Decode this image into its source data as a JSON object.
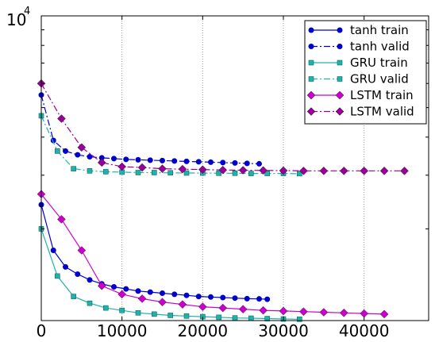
{
  "chart_data": {
    "type": "line",
    "title": "",
    "xlabel": "",
    "ylabel": "",
    "xlim": [
      0,
      48000
    ],
    "x_ticks": [
      0,
      10000,
      20000,
      30000,
      40000
    ],
    "x_tick_labels": [
      "0",
      "10000",
      "20000",
      "30000",
      "40000"
    ],
    "y_scale": "log",
    "ylim": [
      1000,
      10000
    ],
    "y_tick_label": {
      "base": "10",
      "exponent": "4"
    },
    "grid": "x-only, dotted",
    "legend_position": "top-right",
    "series": [
      {
        "name": "tanh train",
        "color": "#0000cc",
        "line": "solid",
        "marker": "circle",
        "x": [
          0,
          1500,
          3000,
          4500,
          6000,
          7500,
          9000,
          10500,
          12000,
          13500,
          15000,
          16500,
          18000,
          19500,
          21000,
          22500,
          24000,
          25500,
          27000,
          28000
        ],
        "y": [
          2400,
          1700,
          1500,
          1420,
          1360,
          1320,
          1290,
          1270,
          1250,
          1240,
          1230,
          1220,
          1210,
          1200,
          1195,
          1190,
          1185,
          1180,
          1178,
          1175
        ]
      },
      {
        "name": "tanh valid",
        "color": "#0000cc",
        "line": "dashdot",
        "marker": "circle",
        "x": [
          0,
          1500,
          3000,
          4500,
          6000,
          7500,
          9000,
          10500,
          12000,
          13500,
          15000,
          16500,
          18000,
          19500,
          21000,
          22500,
          24000,
          25500,
          27000
        ],
        "y": [
          5500,
          3900,
          3600,
          3500,
          3450,
          3420,
          3400,
          3380,
          3370,
          3360,
          3350,
          3340,
          3330,
          3320,
          3310,
          3300,
          3290,
          3280,
          3270
        ]
      },
      {
        "name": "GRU train",
        "color": "#20b2aa",
        "line": "solid",
        "marker": "square",
        "x": [
          0,
          2000,
          4000,
          6000,
          8000,
          10000,
          12000,
          14000,
          16000,
          18000,
          20000,
          22000,
          24000,
          26000,
          28000,
          30000,
          32000
        ],
        "y": [
          2000,
          1400,
          1200,
          1140,
          1100,
          1080,
          1060,
          1050,
          1040,
          1035,
          1030,
          1025,
          1020,
          1018,
          1015,
          1012,
          1010
        ]
      },
      {
        "name": "GRU valid",
        "color": "#20b2aa",
        "line": "dashdot",
        "marker": "square",
        "x": [
          0,
          2000,
          4000,
          6000,
          8000,
          10000,
          12000,
          14000,
          16000,
          18000,
          20000,
          22000,
          24000,
          26000,
          28000,
          30000,
          32000
        ],
        "y": [
          4700,
          3600,
          3150,
          3100,
          3080,
          3070,
          3060,
          3060,
          3055,
          3050,
          3050,
          3045,
          3045,
          3040,
          3040,
          3040,
          3035
        ]
      },
      {
        "name": "LSTM train",
        "color": "#cc00cc",
        "line": "solid",
        "marker": "diamond",
        "x": [
          0,
          2500,
          5000,
          7500,
          10000,
          12500,
          15000,
          17500,
          20000,
          22500,
          25000,
          27500,
          30000,
          32500,
          35000,
          37500,
          40000,
          42500
        ],
        "y": [
          2600,
          2150,
          1700,
          1300,
          1220,
          1180,
          1150,
          1130,
          1110,
          1100,
          1090,
          1080,
          1075,
          1070,
          1065,
          1060,
          1055,
          1050
        ]
      },
      {
        "name": "LSTM valid",
        "color": "#990099",
        "line": "dashdot",
        "marker": "diamond",
        "x": [
          0,
          2500,
          5000,
          7500,
          10000,
          12500,
          15000,
          17500,
          20000,
          22500,
          25000,
          27500,
          30000,
          32500,
          35000,
          37500,
          40000,
          42500,
          45000
        ],
        "y": [
          6000,
          4600,
          3700,
          3300,
          3200,
          3180,
          3150,
          3140,
          3130,
          3120,
          3115,
          3110,
          3105,
          3100,
          3100,
          3100,
          3100,
          3100,
          3100
        ]
      }
    ]
  }
}
